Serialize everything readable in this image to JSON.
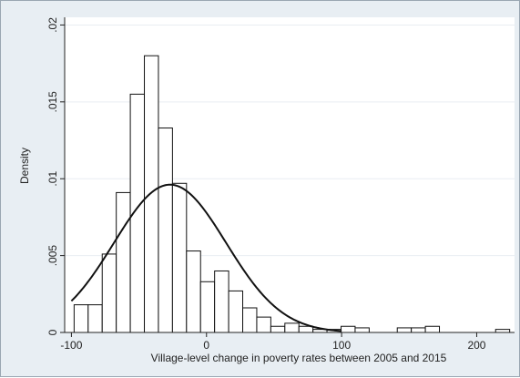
{
  "chart_data": {
    "type": "bar",
    "subtype": "histogram-with-normal-density",
    "xlabel": "Village-level change in poverty rates between 2005 and 2015",
    "ylabel": "Density",
    "xlim": [
      -105,
      228
    ],
    "ylim": [
      0,
      0.0205
    ],
    "x_ticks": [
      -100,
      0,
      100,
      200
    ],
    "x_tick_labels": [
      "-100",
      "0",
      "100",
      "200"
    ],
    "y_ticks": [
      0,
      0.005,
      0.01,
      0.015,
      0.02
    ],
    "y_tick_labels": [
      "0",
      ".005",
      ".01",
      ".015",
      ".02"
    ],
    "grid": true,
    "bin_width": 10.4,
    "bins": [
      {
        "x0": -98.0,
        "x1": -87.6,
        "density": 0.0018
      },
      {
        "x0": -87.6,
        "x1": -77.2,
        "density": 0.0018
      },
      {
        "x0": -77.2,
        "x1": -66.8,
        "density": 0.0051
      },
      {
        "x0": -66.8,
        "x1": -56.4,
        "density": 0.0091
      },
      {
        "x0": -56.4,
        "x1": -46.0,
        "density": 0.0155
      },
      {
        "x0": -46.0,
        "x1": -35.6,
        "density": 0.018
      },
      {
        "x0": -35.6,
        "x1": -25.2,
        "density": 0.0133
      },
      {
        "x0": -25.2,
        "x1": -14.8,
        "density": 0.0097
      },
      {
        "x0": -14.8,
        "x1": -4.4,
        "density": 0.0053
      },
      {
        "x0": -4.4,
        "x1": 6.0,
        "density": 0.0033
      },
      {
        "x0": 6.0,
        "x1": 16.4,
        "density": 0.004
      },
      {
        "x0": 16.4,
        "x1": 26.8,
        "density": 0.0027
      },
      {
        "x0": 26.8,
        "x1": 37.2,
        "density": 0.0016
      },
      {
        "x0": 37.2,
        "x1": 47.6,
        "density": 0.001
      },
      {
        "x0": 47.6,
        "x1": 58.0,
        "density": 0.0004
      },
      {
        "x0": 58.0,
        "x1": 68.4,
        "density": 0.0006
      },
      {
        "x0": 68.4,
        "x1": 78.8,
        "density": 0.0004
      },
      {
        "x0": 78.8,
        "x1": 89.2,
        "density": 0.0002
      },
      {
        "x0": 89.2,
        "x1": 99.6,
        "density": 0.0002
      },
      {
        "x0": 99.6,
        "x1": 110.0,
        "density": 0.0004
      },
      {
        "x0": 110.0,
        "x1": 120.4,
        "density": 0.0003
      },
      {
        "x0": 120.4,
        "x1": 130.8,
        "density": 0.0
      },
      {
        "x0": 130.8,
        "x1": 141.2,
        "density": 0.0
      },
      {
        "x0": 141.2,
        "x1": 151.6,
        "density": 0.0003
      },
      {
        "x0": 151.6,
        "x1": 162.0,
        "density": 0.0003
      },
      {
        "x0": 162.0,
        "x1": 172.4,
        "density": 0.0004
      },
      {
        "x0": 172.4,
        "x1": 182.8,
        "density": 0.0
      },
      {
        "x0": 182.8,
        "x1": 193.2,
        "density": 0.0
      },
      {
        "x0": 193.2,
        "x1": 203.6,
        "density": 0.0
      },
      {
        "x0": 203.6,
        "x1": 214.0,
        "density": 0.0
      },
      {
        "x0": 214.0,
        "x1": 224.4,
        "density": 0.0002
      }
    ],
    "normal_curve": {
      "mean": -27,
      "sd": 41.5,
      "x_range": [
        -100,
        100
      ]
    }
  }
}
